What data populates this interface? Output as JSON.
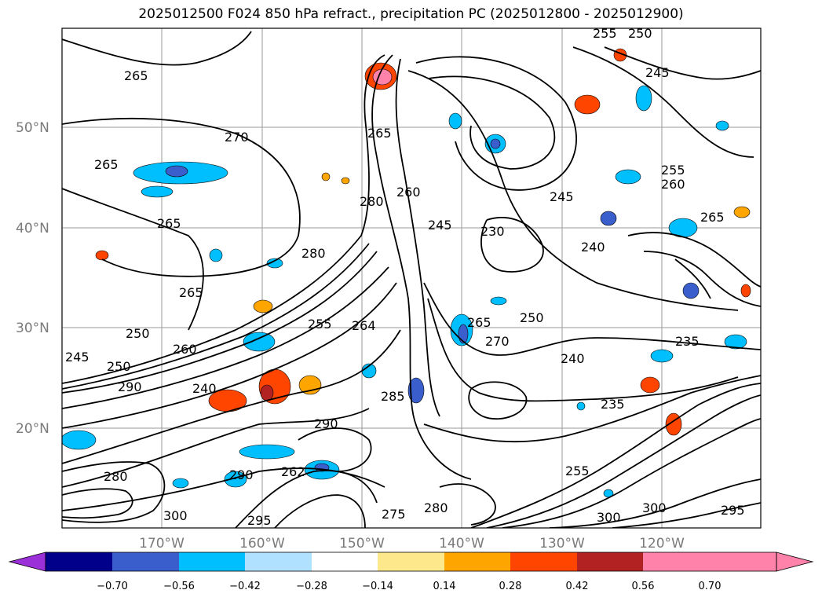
{
  "title": "2025012500 F024 850 hPa refract., precipitation PC (2025012800 - 2025012900)",
  "map": {
    "lat_labels": [
      "50°N",
      "40°N",
      "30°N",
      "20°N"
    ],
    "lon_labels": [
      "170°W",
      "160°W",
      "150°W",
      "140°W",
      "130°W",
      "120°W"
    ],
    "contour_labels": [
      "265",
      "265",
      "270",
      "265",
      "265",
      "280",
      "265",
      "255",
      "260",
      "245",
      "250",
      "290",
      "240",
      "250",
      "285",
      "264",
      "280",
      "260",
      "265",
      "245",
      "250",
      "240",
      "235",
      "245",
      "255",
      "260",
      "265",
      "240",
      "230",
      "300",
      "295",
      "275",
      "280",
      "300",
      "255",
      "290",
      "295",
      "300",
      "262",
      "290",
      "280",
      "235",
      "255",
      "250",
      "245",
      "270"
    ]
  },
  "colorbar": {
    "ticks": [
      "−0.70",
      "−0.56",
      "−0.42",
      "−0.28",
      "−0.14",
      "0.14",
      "0.28",
      "0.42",
      "0.56",
      "0.70"
    ],
    "colors": [
      "#9b30d9",
      "#00008b",
      "#3a5fcd",
      "#00bfff",
      "#b0e2ff",
      "#ffffff",
      "#fde98b",
      "#ffa500",
      "#ff4500",
      "#b22222",
      "#ff82ab",
      "#ff82ab"
    ]
  }
}
